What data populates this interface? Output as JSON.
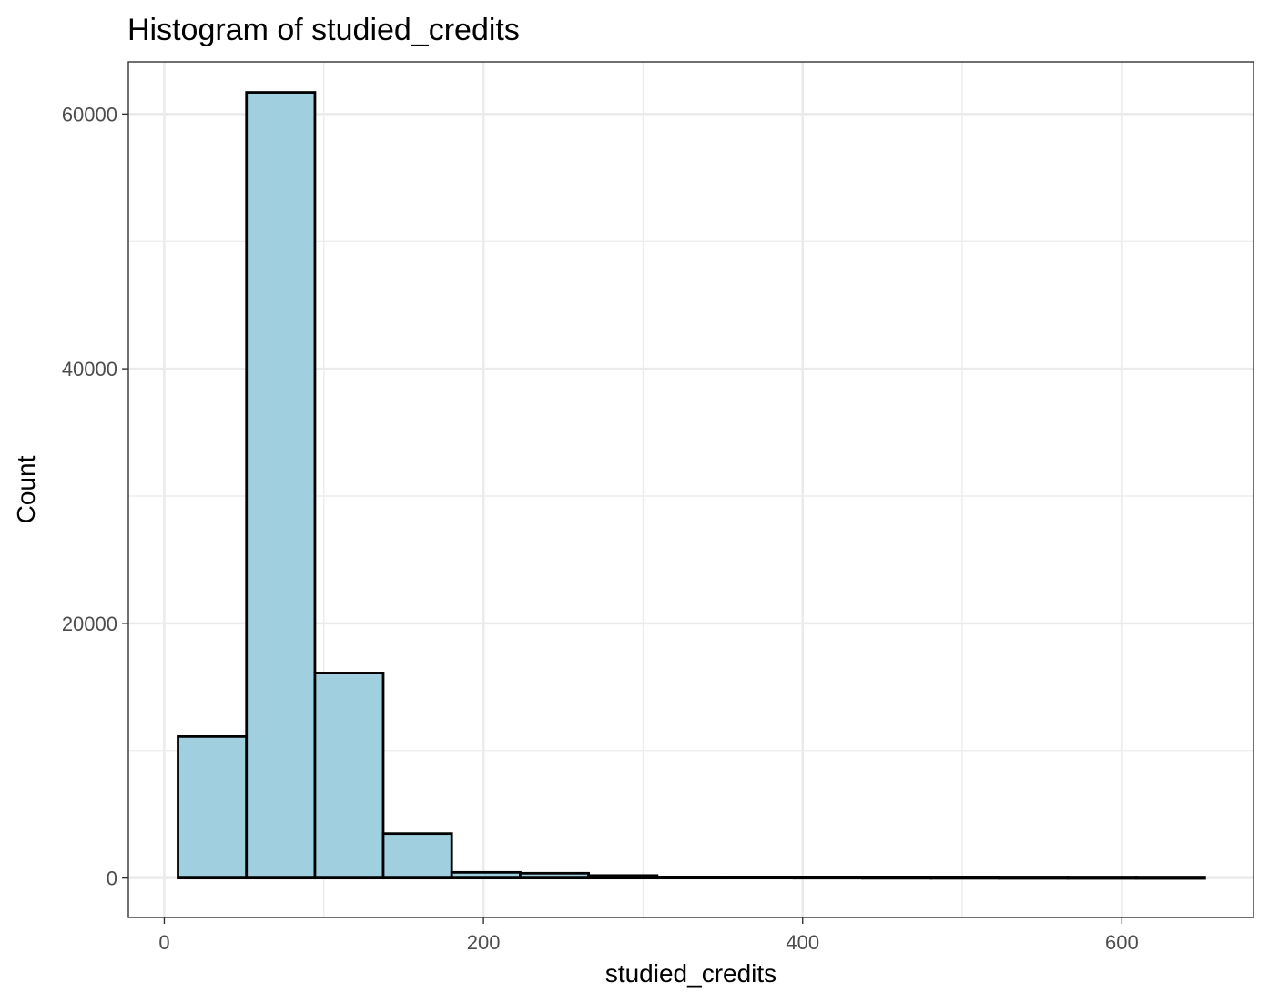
{
  "chart_data": {
    "type": "bar",
    "title": "Histogram of studied_credits",
    "xlabel": "studied_credits",
    "ylabel": "Count",
    "xlim": [
      -22.5,
      682.5
    ],
    "ylim": [
      -3100,
      64100
    ],
    "x_ticks": [
      0,
      200,
      400,
      600
    ],
    "y_ticks": [
      0,
      20000,
      40000,
      60000
    ],
    "grid": true,
    "bar_color": "#a0d0e0",
    "outline_color": "#000000",
    "bins": [
      {
        "start": 8.6,
        "end": 51.5,
        "count": 11100
      },
      {
        "start": 51.5,
        "end": 94.4,
        "count": 61700
      },
      {
        "start": 94.4,
        "end": 137.2,
        "count": 16100
      },
      {
        "start": 137.2,
        "end": 180.1,
        "count": 3500
      },
      {
        "start": 180.1,
        "end": 223.0,
        "count": 450
      },
      {
        "start": 223.0,
        "end": 265.9,
        "count": 380
      },
      {
        "start": 265.9,
        "end": 308.8,
        "count": 200
      },
      {
        "start": 308.8,
        "end": 351.7,
        "count": 80
      },
      {
        "start": 351.7,
        "end": 394.6,
        "count": 50
      },
      {
        "start": 394.6,
        "end": 437.5,
        "count": 30
      },
      {
        "start": 437.5,
        "end": 480.4,
        "count": 20
      },
      {
        "start": 480.4,
        "end": 523.2,
        "count": 15
      },
      {
        "start": 523.2,
        "end": 566.1,
        "count": 10
      },
      {
        "start": 566.1,
        "end": 609.0,
        "count": 8
      },
      {
        "start": 609.0,
        "end": 651.9,
        "count": 5
      }
    ]
  }
}
